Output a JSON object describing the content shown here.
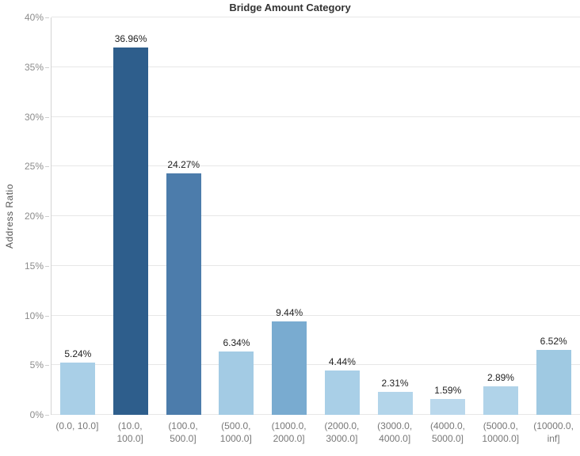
{
  "chart_data": {
    "type": "bar",
    "title": "Bridge Amount Category",
    "xlabel": "",
    "ylabel": "Address Ratio",
    "ylim": [
      0,
      40
    ],
    "ytick_step": 5,
    "ytick_labels": [
      "0%",
      "5%",
      "10%",
      "15%",
      "20%",
      "25%",
      "30%",
      "35%",
      "40%"
    ],
    "categories": [
      "(0.0, 10.0]",
      "(10.0, 100.0]",
      "(100.0, 500.0]",
      "(500.0, 1000.0]",
      "(1000.0, 2000.0]",
      "(2000.0, 3000.0]",
      "(3000.0, 4000.0]",
      "(4000.0, 5000.0]",
      "(5000.0, 10000.0]",
      "(10000.0, inf]"
    ],
    "values": [
      5.24,
      36.96,
      24.27,
      6.34,
      9.44,
      4.44,
      2.31,
      1.59,
      2.89,
      6.52
    ],
    "value_labels": [
      "5.24%",
      "36.96%",
      "24.27%",
      "6.34%",
      "9.44%",
      "4.44%",
      "2.31%",
      "1.59%",
      "2.89%",
      "6.52%"
    ],
    "bar_colors": [
      "#a9cfe7",
      "#2e5e8c",
      "#4c7cab",
      "#a3cbe4",
      "#79abd0",
      "#a9cfe7",
      "#b3d5ea",
      "#bad8ec",
      "#b0d3e9",
      "#9fc9e2"
    ],
    "grid": true,
    "legend": false
  },
  "colors": {
    "gridline": "#e7e7e7",
    "axis_line": "#d4d4d4",
    "tick_text": "#8c8c8c",
    "category_text": "#787878",
    "value_label_text": "#1f1f1f",
    "title_text": "#333333",
    "background": "#ffffff"
  }
}
